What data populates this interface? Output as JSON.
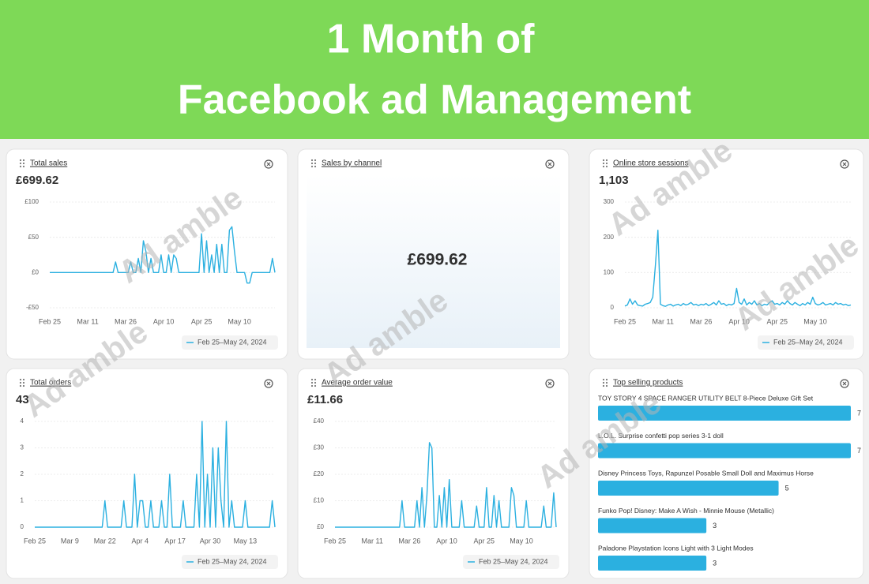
{
  "header": {
    "line1": "1 Month of",
    "line2": "Facebook ad Management"
  },
  "watermark": "Ad amble",
  "cards": [
    {
      "title": "Total sales",
      "metric": "£699.62",
      "chart_data": {
        "type": "line",
        "xlim": [
          0,
          89
        ],
        "ylim": [
          -50,
          100
        ],
        "yticks": [
          {
            "value": -50,
            "label": "-£50"
          },
          {
            "value": 0,
            "label": "£0"
          },
          {
            "value": 50,
            "label": "£50"
          },
          {
            "value": 100,
            "label": "£100"
          }
        ],
        "xticks": [
          {
            "value": 0,
            "label": "Feb 25"
          },
          {
            "value": 15,
            "label": "Mar 11"
          },
          {
            "value": 30,
            "label": "Mar 26"
          },
          {
            "value": 45,
            "label": "Apr 10"
          },
          {
            "value": 60,
            "label": "Apr 25"
          },
          {
            "value": 75,
            "label": "May 10"
          }
        ],
        "series": [
          {
            "name": "Feb 25–May 24, 2024",
            "color": "#2bb0e0",
            "values": [
              0,
              0,
              0,
              0,
              0,
              0,
              0,
              0,
              0,
              0,
              0,
              0,
              0,
              0,
              0,
              0,
              0,
              0,
              0,
              0,
              0,
              0,
              0,
              0,
              0,
              0,
              15,
              0,
              0,
              0,
              0,
              0,
              15,
              0,
              0,
              20,
              0,
              45,
              30,
              0,
              20,
              0,
              0,
              0,
              25,
              0,
              0,
              25,
              0,
              25,
              20,
              0,
              0,
              0,
              0,
              0,
              0,
              0,
              0,
              0,
              55,
              0,
              45,
              0,
              25,
              0,
              40,
              0,
              40,
              0,
              0,
              60,
              65,
              30,
              0,
              0,
              0,
              0,
              -15,
              -15,
              0,
              0,
              0,
              0,
              0,
              0,
              0,
              0,
              20,
              0
            ]
          }
        ]
      }
    },
    {
      "title": "Sales by channel",
      "metric": "£699.62"
    },
    {
      "title": "Online store sessions",
      "metric": "1,103",
      "chart_data": {
        "type": "line",
        "xlim": [
          0,
          89
        ],
        "ylim": [
          0,
          300
        ],
        "yticks": [
          0,
          100,
          200,
          300
        ],
        "xticks": [
          {
            "value": 0,
            "label": "Feb 25"
          },
          {
            "value": 15,
            "label": "Mar 11"
          },
          {
            "value": 30,
            "label": "Mar 26"
          },
          {
            "value": 45,
            "label": "Apr 10"
          },
          {
            "value": 60,
            "label": "Apr 25"
          },
          {
            "value": 75,
            "label": "May 10"
          }
        ],
        "series": [
          {
            "name": "Feb 25–May 24, 2024",
            "color": "#2bb0e0",
            "values": [
              5,
              8,
              25,
              10,
              20,
              8,
              6,
              5,
              10,
              12,
              15,
              30,
              120,
              220,
              10,
              6,
              4,
              8,
              10,
              5,
              8,
              10,
              6,
              12,
              8,
              10,
              15,
              8,
              10,
              6,
              10,
              8,
              12,
              6,
              10,
              15,
              8,
              20,
              10,
              12,
              6,
              10,
              8,
              12,
              55,
              15,
              10,
              25,
              8,
              15,
              10,
              20,
              8,
              12,
              6,
              10,
              8,
              15,
              20,
              10,
              12,
              8,
              15,
              10,
              20,
              12,
              8,
              15,
              10,
              6,
              12,
              8,
              15,
              10,
              30,
              12,
              8,
              10,
              15,
              8,
              10,
              12,
              8,
              15,
              10,
              12,
              8,
              10,
              6,
              8
            ]
          }
        ]
      }
    },
    {
      "title": "Total orders",
      "metric": "43",
      "chart_data": {
        "type": "line",
        "xlim": [
          0,
          89
        ],
        "ylim": [
          0,
          4
        ],
        "yticks": [
          0,
          1,
          2,
          3,
          4
        ],
        "xticks": [
          {
            "value": 0,
            "label": "Feb 25"
          },
          {
            "value": 13,
            "label": "Mar 9"
          },
          {
            "value": 26,
            "label": "Mar 22"
          },
          {
            "value": 39,
            "label": "Apr 4"
          },
          {
            "value": 52,
            "label": "Apr 17"
          },
          {
            "value": 65,
            "label": "Apr 30"
          },
          {
            "value": 78,
            "label": "May 13"
          }
        ],
        "series": [
          {
            "name": "Feb 25–May 24, 2024",
            "color": "#2bb0e0",
            "values": [
              0,
              0,
              0,
              0,
              0,
              0,
              0,
              0,
              0,
              0,
              0,
              0,
              0,
              0,
              0,
              0,
              0,
              0,
              0,
              0,
              0,
              0,
              0,
              0,
              0,
              0,
              1,
              0,
              0,
              0,
              0,
              0,
              0,
              1,
              0,
              0,
              0,
              2,
              0,
              1,
              1,
              0,
              0,
              1,
              0,
              0,
              0,
              1,
              0,
              0,
              2,
              0,
              0,
              0,
              0,
              1,
              0,
              0,
              0,
              0,
              2,
              0,
              4,
              0,
              2,
              0,
              3,
              0,
              3,
              1,
              0,
              4,
              0,
              1,
              0,
              0,
              0,
              0,
              1,
              0,
              0,
              0,
              0,
              0,
              0,
              0,
              0,
              0,
              1,
              0
            ]
          }
        ]
      }
    },
    {
      "title": "Average order value",
      "metric": "£11.66",
      "chart_data": {
        "type": "line",
        "xlim": [
          0,
          89
        ],
        "ylim": [
          0,
          40
        ],
        "yticks": [
          {
            "value": 0,
            "label": "£0"
          },
          {
            "value": 10,
            "label": "£10"
          },
          {
            "value": 20,
            "label": "£20"
          },
          {
            "value": 30,
            "label": "£30"
          },
          {
            "value": 40,
            "label": "£40"
          }
        ],
        "xticks": [
          {
            "value": 0,
            "label": "Feb 25"
          },
          {
            "value": 15,
            "label": "Mar 11"
          },
          {
            "value": 30,
            "label": "Mar 26"
          },
          {
            "value": 45,
            "label": "Apr 10"
          },
          {
            "value": 60,
            "label": "Apr 25"
          },
          {
            "value": 75,
            "label": "May 10"
          }
        ],
        "series": [
          {
            "name": "Feb 25–May 24, 2024",
            "color": "#2bb0e0",
            "values": [
              0,
              0,
              0,
              0,
              0,
              0,
              0,
              0,
              0,
              0,
              0,
              0,
              0,
              0,
              0,
              0,
              0,
              0,
              0,
              0,
              0,
              0,
              0,
              0,
              0,
              0,
              0,
              10,
              0,
              0,
              0,
              0,
              0,
              10,
              0,
              15,
              0,
              12,
              32,
              30,
              0,
              0,
              12,
              0,
              15,
              0,
              18,
              0,
              0,
              0,
              0,
              10,
              0,
              0,
              0,
              0,
              0,
              8,
              0,
              0,
              0,
              15,
              0,
              0,
              12,
              0,
              10,
              0,
              0,
              0,
              0,
              15,
              12,
              0,
              0,
              0,
              0,
              10,
              0,
              0,
              0,
              0,
              0,
              0,
              8,
              0,
              0,
              0,
              13,
              0
            ]
          }
        ]
      }
    },
    {
      "title": "Top selling products",
      "chart_data": {
        "type": "hbar",
        "xlim": [
          0,
          7
        ],
        "color": "#2bb0e0",
        "categories": [
          "TOY STORY 4 SPACE RANGER UTILITY BELT 8-Piece Deluxe Gift Set",
          "L.O.L. Surprise confetti pop series 3-1 doll",
          "Disney Princess Toys, Rapunzel Posable Small Doll and Maximus Horse",
          "Funko Pop! Disney: Make A Wish - Minnie Mouse (Metallic)",
          "Paladone Playstation Icons Light with 3 Light Modes"
        ],
        "values": [
          7,
          7,
          5,
          3,
          3
        ]
      }
    }
  ]
}
